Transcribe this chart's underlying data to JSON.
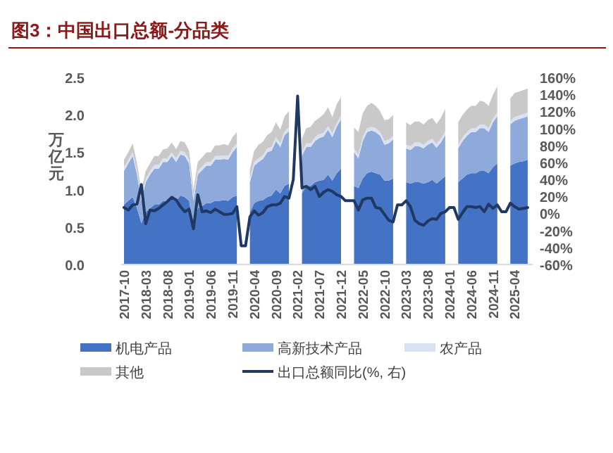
{
  "chart_data": {
    "type": "area",
    "title": "图3：中国出口总额-分品类",
    "ylabel": "万亿元",
    "stacked": true,
    "legend": "bottom",
    "categories": [
      "2017-10",
      null,
      null,
      null,
      null,
      "2018-03",
      null,
      null,
      null,
      null,
      "2018-08",
      null,
      null,
      null,
      null,
      "2019-01",
      null,
      null,
      null,
      null,
      "2019-06",
      null,
      null,
      null,
      null,
      "2019-11",
      null,
      null,
      null,
      null,
      "2020-04",
      null,
      null,
      null,
      null,
      "2020-09",
      null,
      null,
      null,
      null,
      "2021-02",
      null,
      null,
      null,
      null,
      "2021-07",
      null,
      null,
      null,
      null,
      "2021-12",
      null,
      null,
      null,
      null,
      "2022-05",
      null,
      null,
      null,
      null,
      "2022-10",
      null,
      null,
      null,
      null,
      "2023-03",
      null,
      null,
      null,
      null,
      "2023-08",
      null,
      null,
      null,
      null,
      "2024-01",
      null,
      null,
      null,
      null,
      "2024-06",
      null,
      null,
      null,
      null,
      "2024-11",
      null,
      null,
      null,
      null,
      "2025-04",
      null,
      null,
      null
    ],
    "ylim": [
      0,
      2.5
    ],
    "yticks": [
      {
        "value": 0,
        "label": "0.0"
      },
      {
        "value": 0.5,
        "label": "0.5"
      },
      {
        "value": 1,
        "label": "1.0"
      },
      {
        "value": 1.5,
        "label": "1.5"
      },
      {
        "value": 2,
        "label": "2.0"
      },
      {
        "value": 2.5,
        "label": "2.5"
      }
    ],
    "y2lim": [
      -60,
      160
    ],
    "y2ticks": [
      {
        "value": -60,
        "label": "-60%"
      },
      {
        "value": -40,
        "label": "-40%"
      },
      {
        "value": -20,
        "label": "-20%"
      },
      {
        "value": 0,
        "label": "0%"
      },
      {
        "value": 20,
        "label": "20%"
      },
      {
        "value": 40,
        "label": "40%"
      },
      {
        "value": 60,
        "label": "60%"
      },
      {
        "value": 80,
        "label": "80%"
      },
      {
        "value": 100,
        "label": "100%"
      },
      {
        "value": 120,
        "label": "120%"
      },
      {
        "value": 140,
        "label": "140%"
      },
      {
        "value": 160,
        "label": "160%"
      }
    ],
    "series": [
      {
        "name": "机电产品",
        "color": "#4472c4",
        "values": [
          0.8,
          0.85,
          0.9,
          0.75,
          0.55,
          0.7,
          0.75,
          0.8,
          0.8,
          0.85,
          0.85,
          0.9,
          0.85,
          0.92,
          0.9,
          0.85,
          0.5,
          0.75,
          0.78,
          0.82,
          0.82,
          0.85,
          0.85,
          0.86,
          0.85,
          0.9,
          0.92,
          null,
          null,
          0.7,
          0.82,
          0.85,
          0.86,
          0.9,
          0.92,
          1.0,
          0.95,
          1.05,
          1.08,
          null,
          null,
          0.95,
          1.05,
          1.05,
          1.1,
          1.12,
          1.13,
          1.2,
          1.12,
          1.22,
          1.28,
          null,
          null,
          1.05,
          1.02,
          1.15,
          1.22,
          1.24,
          1.22,
          1.2,
          1.12,
          1.12,
          1.15,
          null,
          null,
          1.1,
          1.08,
          1.1,
          1.1,
          1.08,
          1.1,
          1.13,
          1.08,
          1.13,
          1.18,
          null,
          null,
          1.1,
          1.15,
          1.2,
          1.22,
          1.22,
          1.25,
          1.25,
          1.22,
          1.3,
          1.35,
          null,
          null,
          1.32,
          1.35,
          1.37,
          1.38,
          1.4
        ]
      },
      {
        "name": "高新技术产品",
        "color": "#8eaadb",
        "values": [
          0.45,
          0.5,
          0.55,
          0.45,
          0.3,
          0.4,
          0.45,
          0.48,
          0.48,
          0.52,
          0.52,
          0.55,
          0.52,
          0.55,
          0.55,
          0.5,
          0.35,
          0.45,
          0.48,
          0.5,
          0.5,
          0.55,
          0.55,
          0.55,
          0.55,
          0.6,
          0.65,
          null,
          null,
          0.4,
          0.5,
          0.52,
          0.55,
          0.6,
          0.6,
          0.65,
          0.62,
          0.68,
          0.7,
          null,
          null,
          0.5,
          0.52,
          0.52,
          0.55,
          0.57,
          0.58,
          0.6,
          0.58,
          0.62,
          0.66,
          null,
          null,
          0.45,
          0.4,
          0.5,
          0.55,
          0.55,
          0.55,
          0.52,
          0.48,
          0.5,
          0.52,
          null,
          null,
          0.45,
          0.45,
          0.48,
          0.48,
          0.47,
          0.5,
          0.5,
          0.48,
          0.5,
          0.55,
          null,
          null,
          0.45,
          0.5,
          0.52,
          0.55,
          0.55,
          0.57,
          0.57,
          0.55,
          0.6,
          0.63,
          null,
          null,
          0.55,
          0.57,
          0.57,
          0.58,
          0.58
        ]
      },
      {
        "name": "农产品",
        "color": "#d9e2f3",
        "values": [
          0.05,
          0.05,
          0.05,
          0.05,
          0.05,
          0.05,
          0.05,
          0.05,
          0.05,
          0.05,
          0.05,
          0.05,
          0.05,
          0.05,
          0.05,
          0.05,
          0.05,
          0.05,
          0.05,
          0.05,
          0.05,
          0.05,
          0.05,
          0.05,
          0.05,
          0.05,
          0.05,
          null,
          null,
          0.05,
          0.05,
          0.05,
          0.05,
          0.05,
          0.05,
          0.05,
          0.05,
          0.05,
          0.05,
          null,
          null,
          0.05,
          0.05,
          0.05,
          0.05,
          0.05,
          0.05,
          0.05,
          0.05,
          0.05,
          0.05,
          null,
          null,
          0.05,
          0.05,
          0.05,
          0.05,
          0.05,
          0.05,
          0.05,
          0.05,
          0.05,
          0.05,
          null,
          null,
          0.05,
          0.05,
          0.05,
          0.05,
          0.05,
          0.05,
          0.05,
          0.05,
          0.05,
          0.05,
          null,
          null,
          0.05,
          0.05,
          0.05,
          0.05,
          0.05,
          0.05,
          0.05,
          0.05,
          0.05,
          0.05,
          null,
          null,
          0.05,
          0.05,
          0.05,
          0.05,
          0.05
        ]
      },
      {
        "name": "其他",
        "color": "#c9c9c9",
        "values": [
          0.1,
          0.1,
          0.12,
          0.1,
          0.08,
          0.1,
          0.1,
          0.12,
          0.12,
          0.12,
          0.13,
          0.13,
          0.12,
          0.13,
          0.13,
          0.12,
          0.1,
          0.12,
          0.12,
          0.13,
          0.13,
          0.14,
          0.14,
          0.15,
          0.14,
          0.15,
          0.15,
          null,
          null,
          0.12,
          0.15,
          0.18,
          0.18,
          0.18,
          0.2,
          0.2,
          0.18,
          0.2,
          0.22,
          null,
          null,
          0.18,
          0.2,
          0.22,
          0.22,
          0.22,
          0.25,
          0.25,
          0.22,
          0.25,
          0.25,
          null,
          null,
          0.28,
          0.3,
          0.32,
          0.3,
          0.32,
          0.3,
          0.28,
          0.28,
          0.27,
          0.28,
          null,
          null,
          0.3,
          0.28,
          0.28,
          0.28,
          0.27,
          0.28,
          0.28,
          0.27,
          0.28,
          0.3,
          null,
          null,
          0.3,
          0.3,
          0.3,
          0.3,
          0.3,
          0.32,
          0.3,
          0.3,
          0.32,
          0.35,
          null,
          null,
          0.3,
          0.32,
          0.32,
          0.32,
          0.32
        ]
      },
      {
        "name": "出口总额同比(%, 右)",
        "type": "line",
        "axis": "y2",
        "color": "#1f3864",
        "values": [
          7,
          4,
          10,
          11,
          34,
          -12,
          4,
          3,
          6,
          10,
          14,
          19,
          16,
          8,
          2,
          5,
          -18,
          22,
          2,
          3,
          1,
          5,
          2,
          -1,
          -1,
          0,
          8,
          -38,
          -38,
          -4,
          3,
          -2,
          1,
          8,
          10,
          10,
          12,
          20,
          18,
          40,
          138,
          30,
          32,
          28,
          32,
          20,
          25,
          28,
          26,
          22,
          20,
          15,
          15,
          15,
          4,
          16,
          18,
          18,
          7,
          6,
          -1,
          -8,
          -10,
          10,
          10,
          15,
          8,
          -8,
          -12,
          -14,
          -9,
          -6,
          -7,
          0,
          2,
          7,
          7,
          -7,
          1,
          8,
          8,
          7,
          8,
          2,
          11,
          6,
          10,
          2,
          2,
          12,
          8,
          5,
          6,
          7
        ]
      }
    ]
  }
}
